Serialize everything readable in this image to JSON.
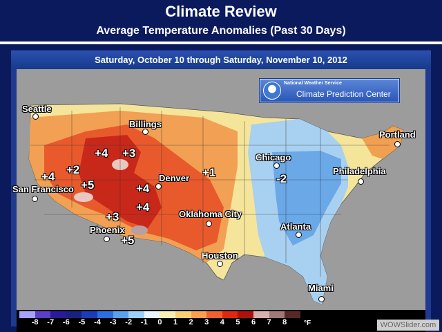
{
  "header": {
    "title": "Climate Review",
    "subtitle": "Average Temperature Anomalies (Past 30 Days)"
  },
  "map": {
    "date_range": "Saturday, October 10 through Saturday, November 10, 2012",
    "logo": {
      "line1": "National Weather Service",
      "line2": "Climate Prediction Center"
    },
    "cities": [
      {
        "name": "Seattle"
      },
      {
        "name": "Billings"
      },
      {
        "name": "San Francisco"
      },
      {
        "name": "Denver"
      },
      {
        "name": "Phoenix"
      },
      {
        "name": "Oklahoma City"
      },
      {
        "name": "Houston"
      },
      {
        "name": "Chicago"
      },
      {
        "name": "Atlanta"
      },
      {
        "name": "Miami"
      },
      {
        "name": "Philadelphia"
      },
      {
        "name": "Portland"
      }
    ],
    "anomaly_labels": [
      "+4",
      "+3",
      "+2",
      "+4",
      "+5",
      "+4",
      "+4",
      "+3",
      "+5",
      "+1",
      "-2"
    ]
  },
  "legend": {
    "unit": "°F",
    "ticks": [
      "-8",
      "-7",
      "-6",
      "-5",
      "-4",
      "-3",
      "-2",
      "-1",
      "0",
      "1",
      "2",
      "3",
      "4",
      "5",
      "6",
      "7",
      "8"
    ],
    "colors": [
      "#a8a0ff",
      "#5c3ec8",
      "#2a1a9a",
      "#1a2080",
      "#1a3cb8",
      "#2a6ee0",
      "#5aa0ee",
      "#9cd0f8",
      "#e8f4ff",
      "#f8f0b0",
      "#f8d070",
      "#f8a050",
      "#f06030",
      "#e02810",
      "#b01010",
      "#d8b0b0",
      "#a07878",
      "#582828"
    ]
  },
  "watermark": "WOWSlider.com"
}
